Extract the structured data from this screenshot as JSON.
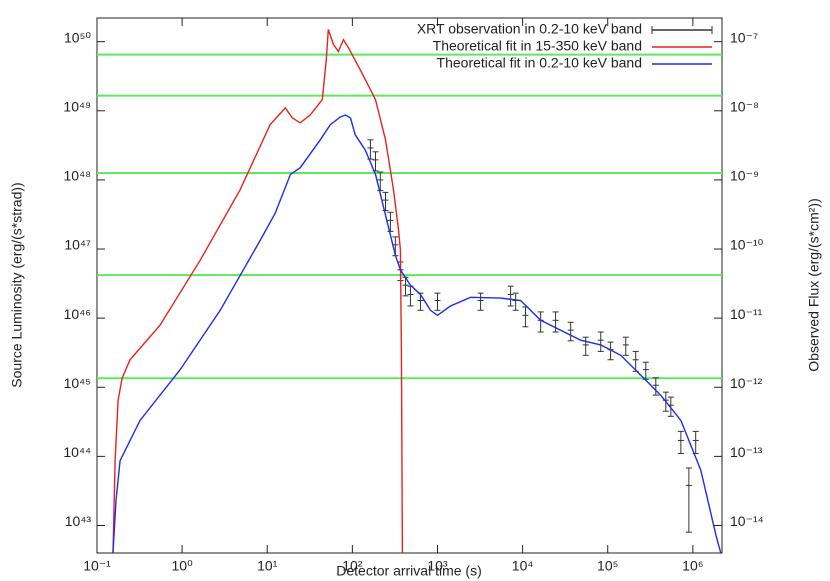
{
  "chart_data": {
    "type": "line",
    "xlabel": "Detector arrival time (s)",
    "ylabel": "Source Luminosity (erg/(s*strad))",
    "y2label": "Observed Flux (erg/(s*cm²))",
    "log_x": true,
    "log_y": true,
    "xlim": [
      0.1,
      2200000
    ],
    "ylim": [
      4e+42,
      2.2e+50
    ],
    "y2lim": [
      4e-15,
      2.2e-07
    ],
    "xticks": [
      {
        "value": 0.1,
        "label": "10⁻¹"
      },
      {
        "value": 1,
        "label": "10⁰"
      },
      {
        "value": 10,
        "label": "10¹"
      },
      {
        "value": 100,
        "label": "10²"
      },
      {
        "value": 1000,
        "label": "10³"
      },
      {
        "value": 10000,
        "label": "10⁴"
      },
      {
        "value": 100000,
        "label": "10⁵"
      },
      {
        "value": 1000000,
        "label": "10⁶"
      }
    ],
    "yticks": [
      {
        "value": 1e+43,
        "label": "10⁴³"
      },
      {
        "value": 1e+44,
        "label": "10⁴⁴"
      },
      {
        "value": 1e+45,
        "label": "10⁴⁵"
      },
      {
        "value": 1e+46,
        "label": "10⁴⁶"
      },
      {
        "value": 1e+47,
        "label": "10⁴⁷"
      },
      {
        "value": 1e+48,
        "label": "10⁴⁸"
      },
      {
        "value": 1e+49,
        "label": "10⁴⁹"
      },
      {
        "value": 1e+50,
        "label": "10⁵⁰"
      }
    ],
    "y2ticks": [
      {
        "value": 1e-14,
        "label": "10⁻¹⁴"
      },
      {
        "value": 1e-13,
        "label": "10⁻¹³"
      },
      {
        "value": 1e-12,
        "label": "10⁻¹²"
      },
      {
        "value": 1e-11,
        "label": "10⁻¹¹"
      },
      {
        "value": 1e-10,
        "label": "10⁻¹⁰"
      },
      {
        "value": 1e-09,
        "label": "10⁻⁹"
      },
      {
        "value": 1e-08,
        "label": "10⁻⁸"
      },
      {
        "value": 1e-07,
        "label": "10⁻⁷"
      }
    ],
    "hlines": {
      "color": "#5fe85f",
      "values": [
        6.5e+49,
        1.66e+49,
        1.26e+48,
        4.2e+46,
        1.35e+45
      ]
    },
    "legend": "top right",
    "series": [
      {
        "name": "XRT observation in 0.2-10 keV band",
        "color": "#333333",
        "style": "errorbar",
        "x": [
          163,
          187,
          213,
          245,
          280,
          320,
          367,
          421,
          481,
          631,
          1000,
          3210,
          7230,
          8280,
          10800,
          16300,
          24400,
          36700,
          55100,
          82800,
          108000,
          163000,
          213000,
          280000,
          367000,
          481000,
          551000,
          723000,
          898000,
          1080000
        ],
        "values": [
          2.9e+48,
          1.95e+48,
          1e+48,
          5.1e+47,
          2.6e+47,
          1.15e+47,
          5e+46,
          3e+46,
          2.2e+46,
          1.8e+46,
          1.8e+46,
          1.8e+46,
          2.2e+46,
          1.8e+46,
          1.1e+46,
          9.3e+45,
          9.3e+45,
          6.7e+45,
          4.1e+45,
          4.8e+45,
          3.5e+45,
          4.1e+45,
          2.5e+45,
          1.8e+45,
          1.07e+45,
          6.5e+44,
          5.5e+44,
          1.7e+44,
          3.8e+43,
          1.7e+44
        ],
        "yerr": [
          9e+47,
          6e+47,
          3e+47,
          1.5e+47,
          8e+46,
          3.5e+46,
          1.5e+46,
          9e+45,
          7e+45,
          5e+45,
          5e+45,
          5e+45,
          7e+45,
          5e+45,
          3.5e+45,
          3e+45,
          3e+45,
          2e+45,
          1.2e+45,
          1.5e+45,
          1e+45,
          1.2e+45,
          8e+44,
          5e+44,
          3e+44,
          2e+44,
          1.7e+44,
          6e+43,
          3e+43,
          6e+43
        ]
      },
      {
        "name": "Theoretical fit in 15-350 keV band",
        "color": "#e8221c",
        "x": [
          0.154,
          0.163,
          0.177,
          0.197,
          0.244,
          0.55,
          1.63,
          4.8,
          10.8,
          16.3,
          19.7,
          24.4,
          32,
          44.4,
          49.4,
          52.2,
          59.8,
          68.5,
          78.4,
          89.8,
          124,
          187,
          245,
          304,
          348,
          367,
          377,
          387
        ],
        "values": [
          4e+42,
          8.7e+43,
          6.5e+44,
          1.35e+45,
          2.5e+45,
          7.9e+45,
          6.9e+46,
          7.2e+47,
          6.3e+48,
          1.1e+49,
          7.9e+48,
          6.7e+48,
          8.7e+48,
          1.45e+49,
          5.5e+49,
          1.5e+50,
          9.1e+49,
          7.2e+49,
          1.07e+50,
          8.2e+49,
          3.9e+49,
          1.45e+49,
          3.8e+48,
          7.2e+47,
          1.9e+47,
          9.8e+46,
          3.5e+45,
          4e+42
        ]
      },
      {
        "name": "Theoretical fit in 0.2-10 keV band",
        "color": "#1c2ee8",
        "x": [
          0.154,
          0.167,
          0.187,
          0.32,
          0.95,
          2.8,
          8.3,
          12.4,
          18.7,
          24.4,
          42,
          55,
          72,
          83,
          95,
          108,
          142,
          187,
          245,
          320,
          367,
          481,
          631,
          828,
          1000,
          1420,
          2440,
          5500,
          9470,
          16300,
          28000,
          48100,
          82800,
          142000,
          244000,
          421000,
          723000,
          1240000,
          1870000,
          2130000
        ],
        "values": [
          4e+42,
          2.3e+43,
          8.7e+43,
          3.3e+44,
          1.8e+45,
          1.3e+46,
          1.35e+47,
          3.3e+47,
          1.2e+48,
          1.5e+48,
          3.8e+48,
          6.3e+48,
          8.1e+48,
          8.7e+48,
          7.9e+48,
          4.5e+48,
          2.7e+48,
          1.2e+48,
          3.1e+47,
          8.1e+46,
          5e+46,
          3e+46,
          2.2e+46,
          1.3e+46,
          1.1e+46,
          1.5e+46,
          2e+46,
          1.95e+46,
          1.8e+46,
          9.3e+45,
          6.7e+45,
          4.8e+45,
          4.1e+45,
          2.9e+45,
          1.5e+45,
          7.6e+44,
          3.3e+44,
          6.3e+43,
          7.2e+42,
          4e+42
        ]
      }
    ]
  }
}
